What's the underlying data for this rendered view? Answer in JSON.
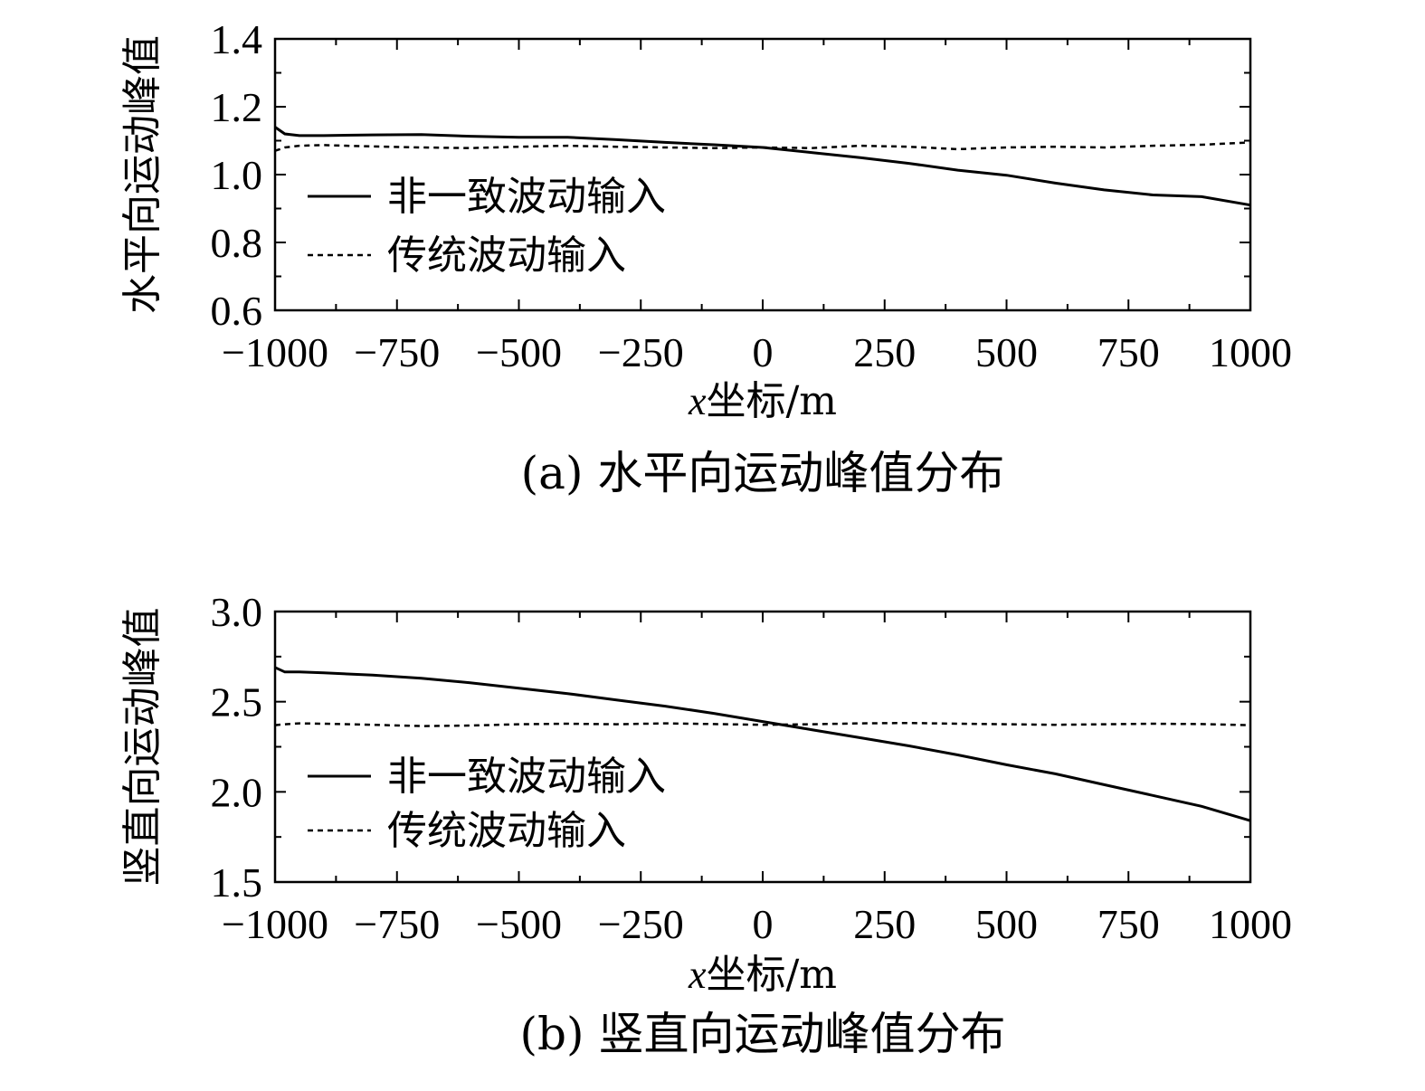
{
  "chart_data": [
    {
      "type": "line",
      "caption": "(a) 水平向运动峰值分布",
      "xlabel_var": "x",
      "xlabel_rest": "坐标/m",
      "ylabel": "水平向运动峰值",
      "xlim": [
        -1000,
        1000
      ],
      "ylim": [
        0.6,
        1.4
      ],
      "xticks": [
        -1000,
        -750,
        -500,
        -250,
        0,
        250,
        500,
        750,
        1000
      ],
      "xtick_labels": [
        "−1000",
        "−750",
        "−500",
        "−250",
        "0",
        "250",
        "500",
        "750",
        "1000"
      ],
      "yticks": [
        0.6,
        0.8,
        1.0,
        1.2,
        1.4
      ],
      "ytick_labels": [
        "0.6",
        "0.8",
        "1.0",
        "1.2",
        "1.4"
      ],
      "legend": "center-left",
      "series": [
        {
          "name": "非一致波动输入",
          "style": "solid",
          "x": [
            -1000,
            -980,
            -950,
            -900,
            -800,
            -700,
            -600,
            -500,
            -400,
            -300,
            -200,
            -100,
            0,
            100,
            200,
            300,
            400,
            500,
            600,
            700,
            800,
            900,
            1000
          ],
          "y": [
            1.14,
            1.12,
            1.115,
            1.115,
            1.117,
            1.118,
            1.113,
            1.11,
            1.11,
            1.103,
            1.095,
            1.088,
            1.08,
            1.065,
            1.05,
            1.033,
            1.013,
            0.998,
            0.975,
            0.955,
            0.94,
            0.935,
            0.91
          ]
        },
        {
          "name": "传统波动输入",
          "style": "dashed",
          "x": [
            -1000,
            -980,
            -950,
            -900,
            -800,
            -700,
            -600,
            -500,
            -400,
            -300,
            -200,
            -100,
            0,
            100,
            200,
            300,
            400,
            500,
            600,
            700,
            800,
            900,
            1000
          ],
          "y": [
            1.07,
            1.08,
            1.085,
            1.087,
            1.083,
            1.08,
            1.078,
            1.082,
            1.085,
            1.082,
            1.08,
            1.078,
            1.08,
            1.078,
            1.085,
            1.082,
            1.075,
            1.08,
            1.082,
            1.08,
            1.085,
            1.088,
            1.095
          ]
        }
      ]
    },
    {
      "type": "line",
      "caption": "(b) 竖直向运动峰值分布",
      "xlabel_var": "x",
      "xlabel_rest": "坐标/m",
      "ylabel": "竖直向运动峰值",
      "xlim": [
        -1000,
        1000
      ],
      "ylim": [
        1.5,
        3.0
      ],
      "xticks": [
        -1000,
        -750,
        -500,
        -250,
        0,
        250,
        500,
        750,
        1000
      ],
      "xtick_labels": [
        "−1000",
        "−750",
        "−500",
        "−250",
        "0",
        "250",
        "500",
        "750",
        "1000"
      ],
      "yticks": [
        1.5,
        2.0,
        2.5,
        3.0
      ],
      "ytick_labels": [
        "1.5",
        "2.0",
        "2.5",
        "3.0"
      ],
      "legend": "center-left",
      "series": [
        {
          "name": "非一致波动输入",
          "style": "solid",
          "x": [
            -1000,
            -980,
            -950,
            -900,
            -800,
            -700,
            -600,
            -500,
            -400,
            -300,
            -200,
            -100,
            0,
            100,
            200,
            300,
            400,
            500,
            600,
            700,
            800,
            900,
            1000
          ],
          "y": [
            2.69,
            2.665,
            2.665,
            2.66,
            2.648,
            2.63,
            2.605,
            2.575,
            2.545,
            2.51,
            2.475,
            2.435,
            2.39,
            2.345,
            2.3,
            2.255,
            2.205,
            2.15,
            2.1,
            2.04,
            1.98,
            1.92,
            1.84
          ]
        },
        {
          "name": "传统波动输入",
          "style": "dashed",
          "x": [
            -1000,
            -980,
            -950,
            -900,
            -800,
            -700,
            -600,
            -500,
            -400,
            -300,
            -200,
            -100,
            0,
            100,
            200,
            300,
            400,
            500,
            600,
            700,
            800,
            900,
            1000
          ],
          "y": [
            2.37,
            2.375,
            2.38,
            2.378,
            2.372,
            2.365,
            2.368,
            2.375,
            2.378,
            2.375,
            2.38,
            2.376,
            2.372,
            2.375,
            2.38,
            2.382,
            2.378,
            2.375,
            2.372,
            2.375,
            2.378,
            2.376,
            2.37
          ]
        }
      ]
    }
  ]
}
